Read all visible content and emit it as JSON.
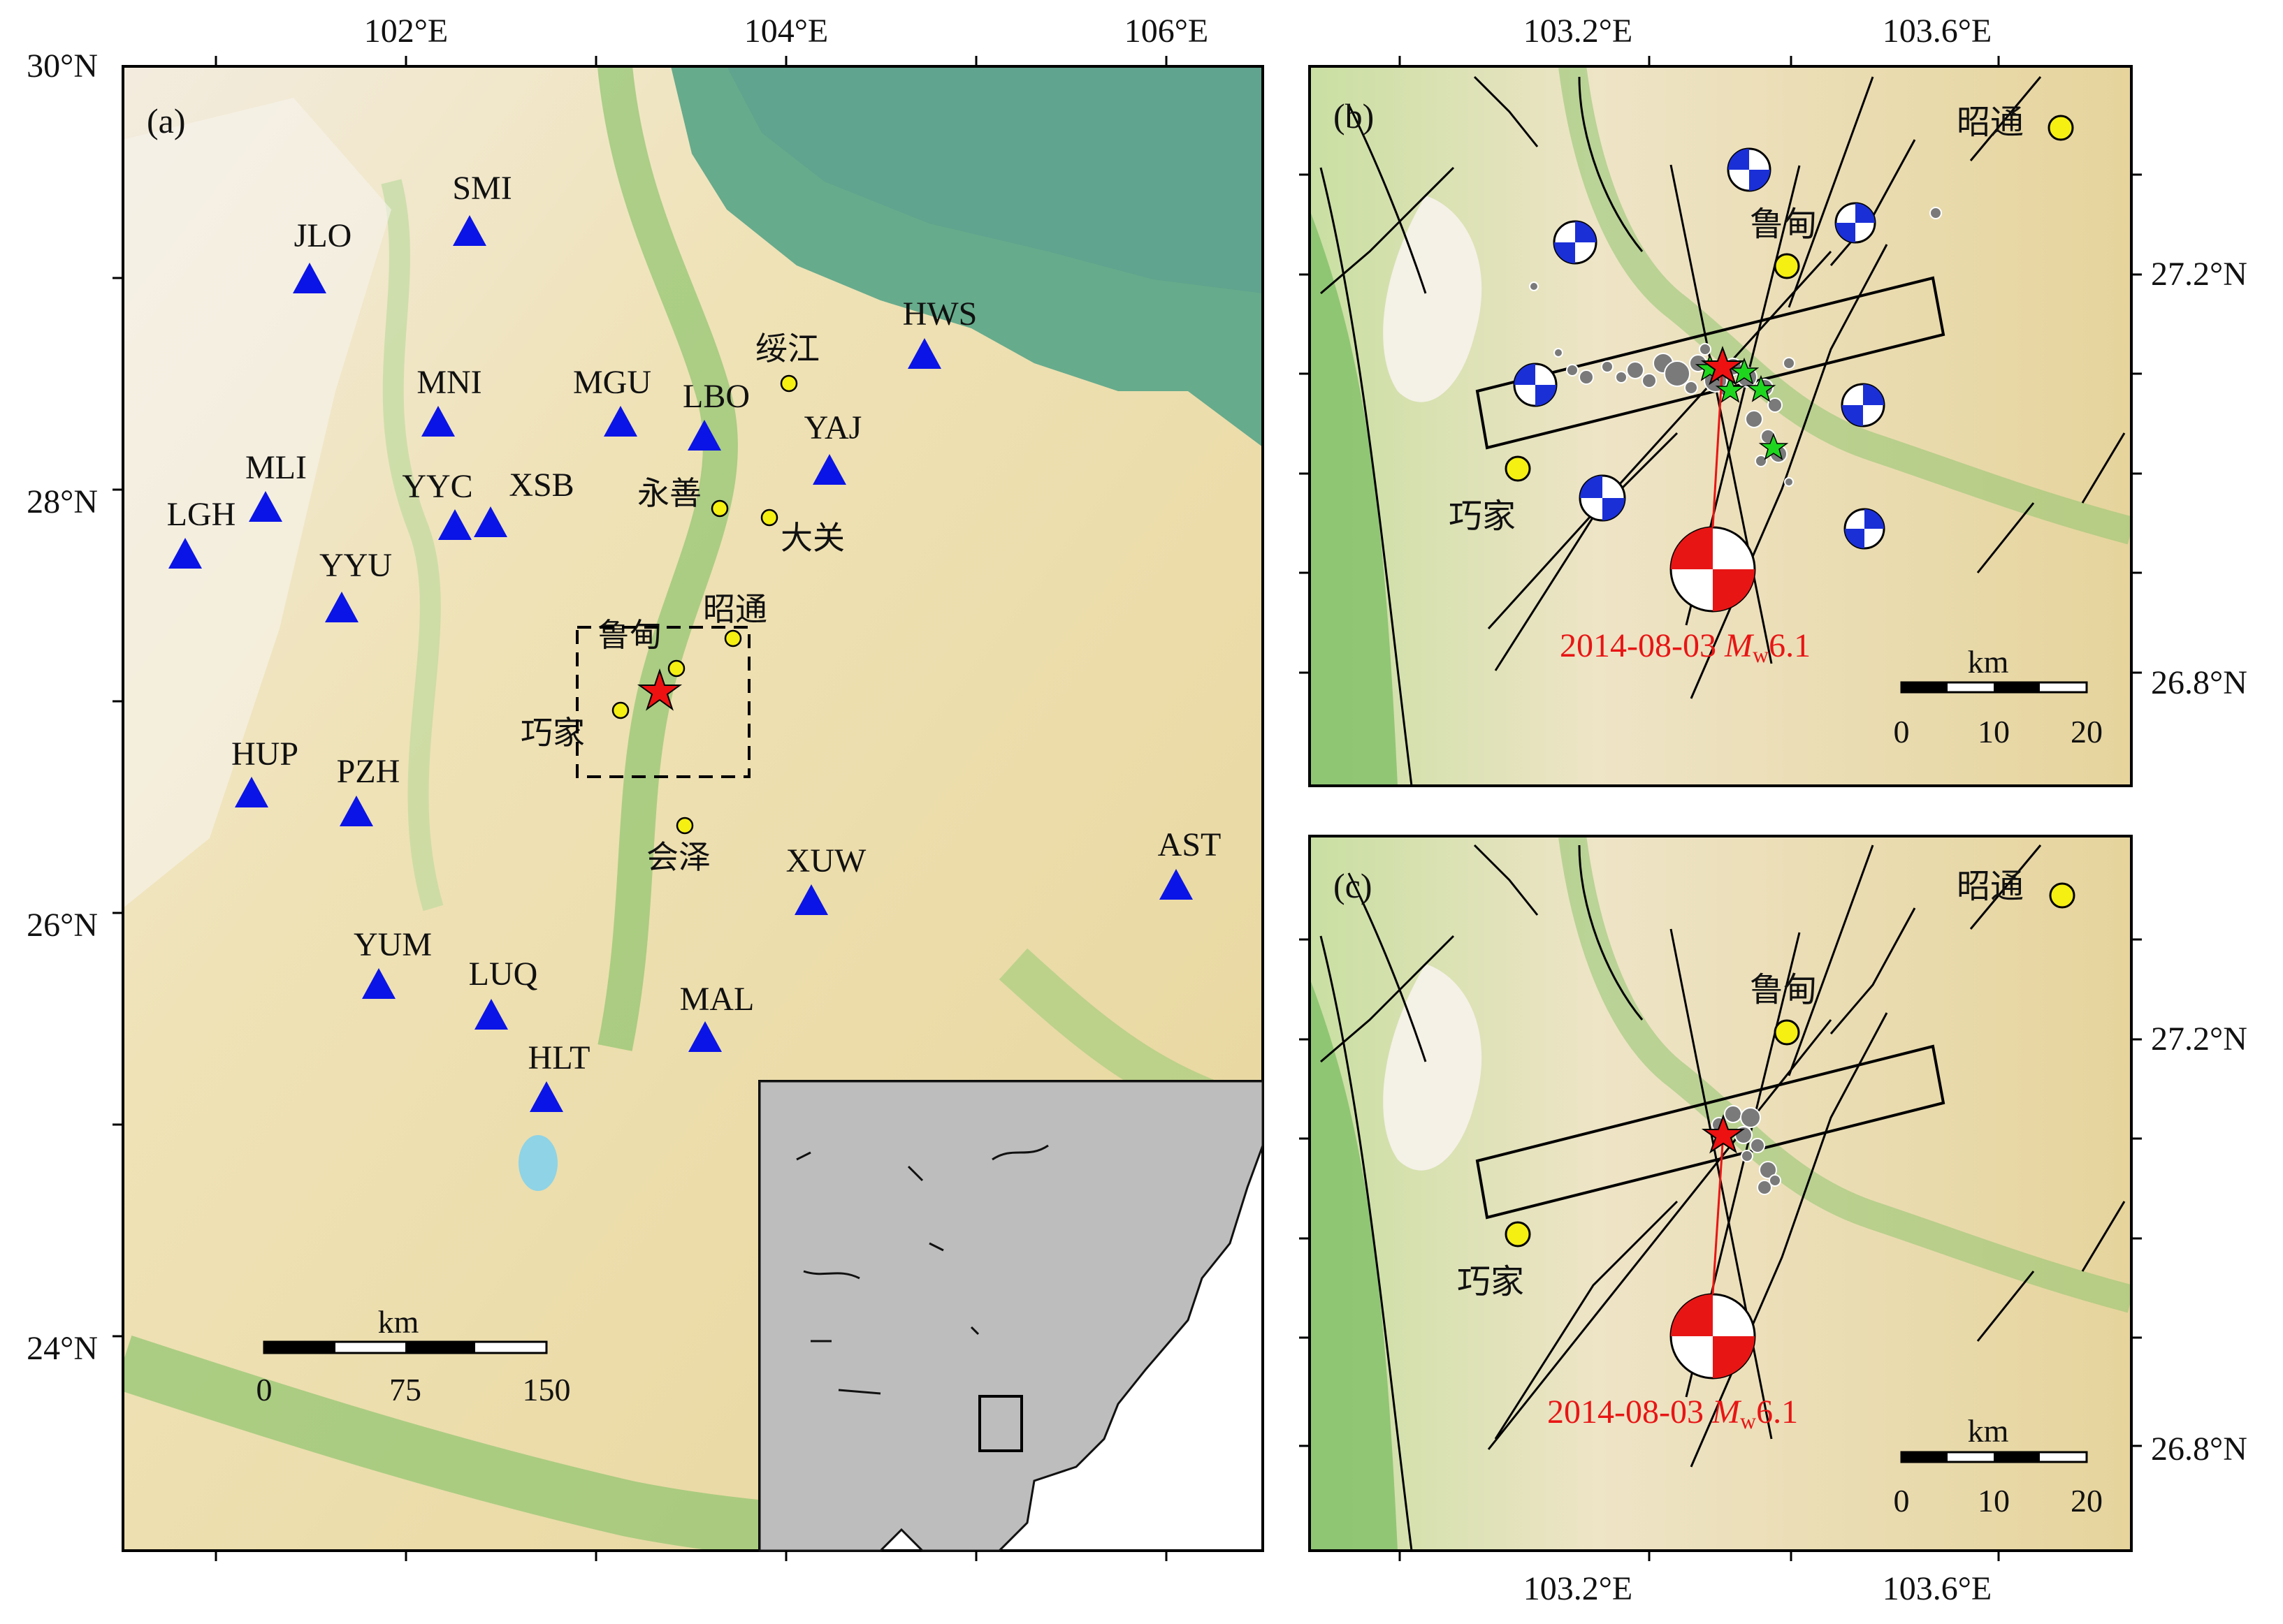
{
  "panel_a": {
    "label": "(a)",
    "lon_ticks": [
      "102°E",
      "104°E",
      "106°E"
    ],
    "lat_ticks": [
      "30°N",
      "28°N",
      "26°N",
      "24°N"
    ],
    "stations": [
      {
        "code": "SMI"
      },
      {
        "code": "JLO"
      },
      {
        "code": "MNI"
      },
      {
        "code": "MGU"
      },
      {
        "code": "LBO"
      },
      {
        "code": "HWS"
      },
      {
        "code": "YAJ"
      },
      {
        "code": "MLI"
      },
      {
        "code": "LGH"
      },
      {
        "code": "YYC"
      },
      {
        "code": "XSB"
      },
      {
        "code": "YYU"
      },
      {
        "code": "HUP"
      },
      {
        "code": "PZH"
      },
      {
        "code": "AST"
      },
      {
        "code": "XUW"
      },
      {
        "code": "YUM"
      },
      {
        "code": "LUQ"
      },
      {
        "code": "MAL"
      },
      {
        "code": "HLT"
      }
    ],
    "towns": [
      "绥江",
      "永善",
      "大关",
      "昭通",
      "鲁甸",
      "巧家",
      "会泽"
    ],
    "scale_bar": {
      "unit": "km",
      "ticks": [
        "0",
        "75",
        "150"
      ]
    }
  },
  "panel_b": {
    "label": "(b)",
    "lon_ticks": [
      "103.2°E",
      "103.6°E"
    ],
    "lat_ticks": [
      "27.2°N",
      "26.8°N"
    ],
    "towns": [
      "昭通",
      "鲁甸",
      "巧家"
    ],
    "event": {
      "date": "2014-08-03",
      "mag_symbol": "M",
      "mag_sub": "w",
      "mag_value": "6.1"
    },
    "scale_bar": {
      "unit": "km",
      "ticks": [
        "0",
        "10",
        "20"
      ]
    }
  },
  "panel_c": {
    "label": "(c)",
    "lon_ticks": [
      "103.2°E",
      "103.6°E"
    ],
    "lat_ticks": [
      "27.2°N",
      "26.8°N"
    ],
    "towns": [
      "昭通",
      "鲁甸",
      "巧家"
    ],
    "event": {
      "date": "2014-08-03",
      "mag_symbol": "M",
      "mag_sub": "w",
      "mag_value": "6.1"
    },
    "scale_bar": {
      "unit": "km",
      "ticks": [
        "0",
        "10",
        "20"
      ]
    }
  },
  "colors": {
    "land": "#e9d9a4",
    "lowland": "#8cc56e",
    "basin": "#5fa987",
    "highland": "#f6f1e8",
    "station": "#0a14e6",
    "epicenter": "#ee1111",
    "town": "#f5ef12",
    "beachball_small": "#1a2fd6",
    "beachball_main": "#e81515",
    "inset_land": "#bdbdbd"
  }
}
